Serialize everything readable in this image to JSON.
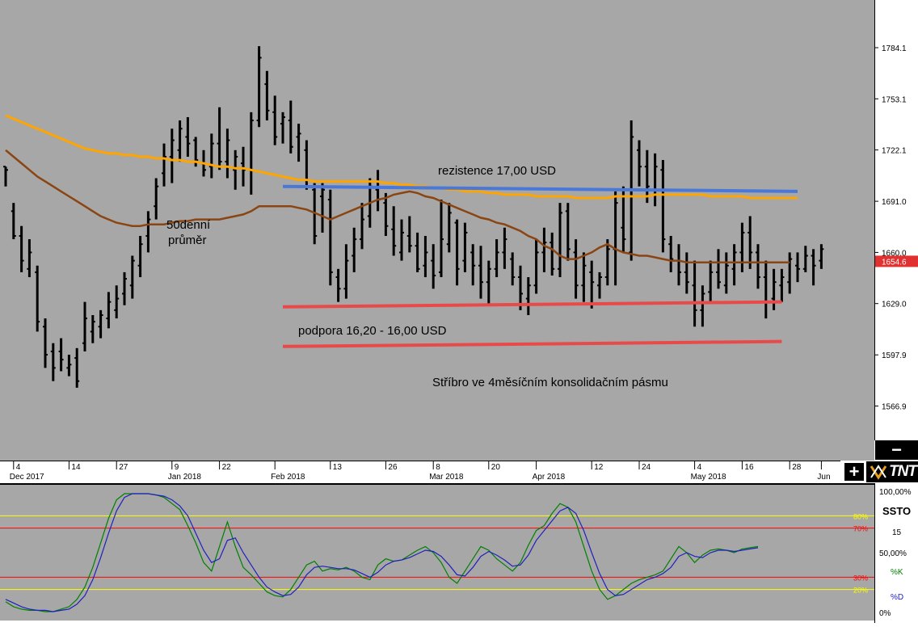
{
  "chart_data": [
    {
      "type": "ohlc",
      "ylim": [
        1545,
        1815
      ],
      "y_ticks": [
        "1784.1",
        "1753.1",
        "1722.1",
        "1691.0",
        "1660.0",
        "1629.0",
        "1597.9",
        "1566.9"
      ],
      "last_price_label": "1654.6",
      "x_ticks": [
        {
          "i": 1,
          "label": "4",
          "sub": "Dec 2017"
        },
        {
          "i": 8,
          "label": "14",
          "sub": ""
        },
        {
          "i": 14,
          "label": "27",
          "sub": ""
        },
        {
          "i": 21,
          "label": "9",
          "sub": "Jan 2018"
        },
        {
          "i": 27,
          "label": "22",
          "sub": ""
        },
        {
          "i": 34,
          "label": "",
          "sub": "Feb 2018"
        },
        {
          "i": 41,
          "label": "13",
          "sub": ""
        },
        {
          "i": 48,
          "label": "26",
          "sub": ""
        },
        {
          "i": 54,
          "label": "8",
          "sub": "Mar 2018"
        },
        {
          "i": 61,
          "label": "20",
          "sub": ""
        },
        {
          "i": 67,
          "label": "",
          "sub": "Apr 2018"
        },
        {
          "i": 74,
          "label": "12",
          "sub": ""
        },
        {
          "i": 80,
          "label": "24",
          "sub": ""
        },
        {
          "i": 87,
          "label": "4",
          "sub": "May 2018"
        },
        {
          "i": 93,
          "label": "16",
          "sub": ""
        },
        {
          "i": 99,
          "label": "28",
          "sub": ""
        },
        {
          "i": 103,
          "label": "",
          "sub": "Jun"
        }
      ],
      "bars": [
        [
          1712,
          1700,
          1712,
          1710
        ],
        [
          1690,
          1668,
          1685,
          1670
        ],
        [
          1676,
          1648,
          1670,
          1655
        ],
        [
          1668,
          1645,
          1650,
          1660
        ],
        [
          1652,
          1612,
          1648,
          1618
        ],
        [
          1620,
          1590,
          1615,
          1598
        ],
        [
          1605,
          1582,
          1600,
          1590
        ],
        [
          1608,
          1588,
          1600,
          1595
        ],
        [
          1598,
          1585,
          1590,
          1592
        ],
        [
          1602,
          1578,
          1596,
          1582
        ],
        [
          1630,
          1600,
          1605,
          1620
        ],
        [
          1622,
          1605,
          1612,
          1618
        ],
        [
          1625,
          1608,
          1615,
          1622
        ],
        [
          1636,
          1614,
          1620,
          1630
        ],
        [
          1640,
          1620,
          1625,
          1632
        ],
        [
          1648,
          1628,
          1635,
          1644
        ],
        [
          1658,
          1632,
          1640,
          1655
        ],
        [
          1670,
          1645,
          1652,
          1665
        ],
        [
          1685,
          1660,
          1670,
          1680
        ],
        [
          1705,
          1680,
          1688,
          1700
        ],
        [
          1726,
          1700,
          1708,
          1718
        ],
        [
          1735,
          1702,
          1718,
          1728
        ],
        [
          1740,
          1715,
          1722,
          1735
        ],
        [
          1742,
          1718,
          1730,
          1726
        ],
        [
          1730,
          1712,
          1728,
          1716
        ],
        [
          1722,
          1706,
          1714,
          1710
        ],
        [
          1732,
          1705,
          1712,
          1726
        ],
        [
          1748,
          1710,
          1726,
          1715
        ],
        [
          1735,
          1705,
          1715,
          1728
        ],
        [
          1722,
          1698,
          1710,
          1718
        ],
        [
          1724,
          1700,
          1714,
          1710
        ],
        [
          1745,
          1695,
          1710,
          1740
        ],
        [
          1785,
          1736,
          1740,
          1778
        ],
        [
          1770,
          1740,
          1762,
          1746
        ],
        [
          1755,
          1725,
          1745,
          1730
        ],
        [
          1745,
          1726,
          1738,
          1742
        ],
        [
          1752,
          1720,
          1740,
          1724
        ],
        [
          1738,
          1715,
          1730,
          1732
        ],
        [
          1728,
          1698,
          1722,
          1700
        ],
        [
          1702,
          1665,
          1698,
          1670
        ],
        [
          1702,
          1672,
          1694,
          1698
        ],
        [
          1698,
          1640,
          1692,
          1648
        ],
        [
          1650,
          1630,
          1645,
          1638
        ],
        [
          1665,
          1632,
          1638,
          1655
        ],
        [
          1675,
          1648,
          1658,
          1668
        ],
        [
          1690,
          1662,
          1668,
          1680
        ],
        [
          1705,
          1675,
          1682,
          1700
        ],
        [
          1710,
          1685,
          1698,
          1692
        ],
        [
          1696,
          1670,
          1690,
          1676
        ],
        [
          1688,
          1658,
          1674,
          1664
        ],
        [
          1680,
          1655,
          1660,
          1672
        ],
        [
          1682,
          1660,
          1670,
          1664
        ],
        [
          1672,
          1648,
          1664,
          1650
        ],
        [
          1670,
          1645,
          1652,
          1660
        ],
        [
          1665,
          1638,
          1655,
          1646
        ],
        [
          1692,
          1645,
          1648,
          1668
        ],
        [
          1690,
          1660,
          1665,
          1684
        ],
        [
          1680,
          1640,
          1678,
          1650
        ],
        [
          1678,
          1648,
          1655,
          1672
        ],
        [
          1665,
          1640,
          1660,
          1652
        ],
        [
          1664,
          1632,
          1652,
          1642
        ],
        [
          1655,
          1628,
          1642,
          1650
        ],
        [
          1668,
          1645,
          1650,
          1660
        ],
        [
          1675,
          1650,
          1660,
          1668
        ],
        [
          1660,
          1640,
          1656,
          1645
        ],
        [
          1652,
          1625,
          1645,
          1635
        ],
        [
          1645,
          1622,
          1632,
          1640
        ],
        [
          1668,
          1635,
          1640,
          1660
        ],
        [
          1675,
          1648,
          1660,
          1666
        ],
        [
          1672,
          1646,
          1666,
          1650
        ],
        [
          1690,
          1645,
          1650,
          1684
        ],
        [
          1690,
          1655,
          1685,
          1662
        ],
        [
          1668,
          1632,
          1660,
          1640
        ],
        [
          1660,
          1630,
          1640,
          1652
        ],
        [
          1655,
          1626,
          1648,
          1642
        ],
        [
          1648,
          1632,
          1640,
          1645
        ],
        [
          1668,
          1640,
          1645,
          1662
        ],
        [
          1697,
          1640,
          1662,
          1690
        ],
        [
          1700,
          1660,
          1675,
          1668
        ],
        [
          1740,
          1655,
          1660,
          1730
        ],
        [
          1728,
          1700,
          1722,
          1712
        ],
        [
          1722,
          1690,
          1712,
          1700
        ],
        [
          1720,
          1688,
          1695,
          1712
        ],
        [
          1716,
          1660,
          1710,
          1668
        ],
        [
          1670,
          1648,
          1665,
          1656
        ],
        [
          1665,
          1640,
          1655,
          1648
        ],
        [
          1660,
          1635,
          1648,
          1642
        ],
        [
          1655,
          1615,
          1640,
          1625
        ],
        [
          1640,
          1615,
          1625,
          1635
        ],
        [
          1655,
          1630,
          1636,
          1648
        ],
        [
          1662,
          1638,
          1648,
          1642
        ],
        [
          1660,
          1635,
          1640,
          1652
        ],
        [
          1665,
          1640,
          1650,
          1660
        ],
        [
          1678,
          1648,
          1660,
          1672
        ],
        [
          1682,
          1650,
          1672,
          1660
        ],
        [
          1665,
          1638,
          1660,
          1645
        ],
        [
          1655,
          1620,
          1645,
          1630
        ],
        [
          1650,
          1625,
          1632,
          1642
        ],
        [
          1650,
          1630,
          1640,
          1645
        ],
        [
          1660,
          1635,
          1642,
          1656
        ],
        [
          1660,
          1642,
          1652,
          1650
        ],
        [
          1664,
          1648,
          1650,
          1658
        ],
        [
          1662,
          1640,
          1658,
          1652
        ],
        [
          1665,
          1650,
          1655,
          1662
        ]
      ],
      "ma50": [
        1722,
        1718,
        1714,
        1710,
        1706,
        1703,
        1700,
        1697,
        1694,
        1691,
        1688,
        1685,
        1682,
        1680,
        1678,
        1677,
        1676,
        1676,
        1677,
        1677,
        1677,
        1678,
        1679,
        1679,
        1680,
        1680,
        1680,
        1680,
        1681,
        1682,
        1683,
        1685,
        1688,
        1688,
        1688,
        1688,
        1688,
        1687,
        1686,
        1684,
        1682,
        1680,
        1682,
        1684,
        1686,
        1688,
        1690,
        1692,
        1693,
        1695,
        1696,
        1697,
        1696,
        1694,
        1693,
        1691,
        1689,
        1687,
        1685,
        1683,
        1681,
        1680,
        1678,
        1677,
        1675,
        1673,
        1670,
        1668,
        1664,
        1662,
        1658,
        1656,
        1656,
        1658,
        1660,
        1663,
        1665,
        1662,
        1660,
        1659,
        1658,
        1658,
        1657,
        1656,
        1655,
        1655,
        1654,
        1654,
        1654,
        1654,
        1654,
        1654,
        1654,
        1654,
        1654,
        1654,
        1654,
        1654,
        1654,
        1654
      ],
      "ma_long": [
        1743,
        1741,
        1739,
        1737,
        1735,
        1733,
        1731,
        1729,
        1727,
        1725,
        1723,
        1722,
        1721,
        1720,
        1720,
        1719,
        1719,
        1718,
        1718,
        1717,
        1717,
        1716,
        1716,
        1715,
        1715,
        1714,
        1713,
        1712,
        1712,
        1711,
        1711,
        1710,
        1709,
        1708,
        1707,
        1706,
        1705,
        1704,
        1704,
        1703,
        1703,
        1703,
        1703,
        1703,
        1703,
        1703,
        1703,
        1703,
        1702,
        1702,
        1701,
        1701,
        1700,
        1700,
        1699,
        1699,
        1698,
        1698,
        1697,
        1697,
        1697,
        1696,
        1696,
        1695,
        1695,
        1695,
        1695,
        1694,
        1694,
        1694,
        1694,
        1694,
        1693,
        1693,
        1693,
        1693,
        1693,
        1694,
        1694,
        1694,
        1694,
        1694,
        1695,
        1695,
        1695,
        1695,
        1695,
        1695,
        1695,
        1694,
        1694,
        1694,
        1694,
        1694,
        1693,
        1693,
        1693,
        1693,
        1693,
        1693,
        1693
      ],
      "annotations": {
        "resistance": "rezistence 17,00 USD",
        "ma_label_line1": "50denní",
        "ma_label_line2": "průměr",
        "support": "podpora 16,20 - 16,00 USD",
        "caption": "Stříbro ve 4měsíčním konsolidačním pásmu"
      },
      "lines": {
        "resistance": [
          [
            35,
            1700
          ],
          [
            100,
            1697
          ]
        ],
        "support_upper": [
          [
            35,
            1627
          ],
          [
            98,
            1630
          ]
        ],
        "support_lower": [
          [
            35,
            1603
          ],
          [
            98,
            1606
          ]
        ]
      },
      "colors": {
        "background": "#a7a7a7",
        "bars": "#000000",
        "ma50": "#8b4513",
        "ma_long": "#ffa500",
        "resistance": "#4a78d8",
        "support": "#e84a4a"
      }
    },
    {
      "type": "line",
      "name": "SSTO",
      "ylim": [
        0,
        100
      ],
      "period_label": "15",
      "y_ticks": [
        "100,00%",
        "50,00%",
        "0%"
      ],
      "levels": [
        {
          "value": 80,
          "label": "80%",
          "color": "#ffff00"
        },
        {
          "value": 70,
          "label": "70%",
          "color": "#ff0000"
        },
        {
          "value": 30,
          "label": "30%",
          "color": "#ff0000"
        },
        {
          "value": 20,
          "label": "20%",
          "color": "#ffff00"
        }
      ],
      "series": [
        {
          "name": "%K",
          "color": "#008000",
          "values": [
            10,
            6,
            4,
            3,
            3,
            2,
            2,
            4,
            6,
            12,
            22,
            38,
            58,
            78,
            93,
            98,
            98,
            98,
            98,
            97,
            95,
            90,
            85,
            72,
            58,
            42,
            35,
            55,
            75,
            55,
            38,
            32,
            25,
            18,
            15,
            14,
            20,
            30,
            40,
            43,
            35,
            37,
            36,
            38,
            35,
            30,
            28,
            40,
            45,
            43,
            44,
            48,
            52,
            55,
            50,
            42,
            30,
            25,
            35,
            45,
            55,
            52,
            45,
            40,
            35,
            42,
            56,
            68,
            72,
            82,
            90,
            87,
            75,
            55,
            35,
            20,
            12,
            15,
            20,
            25,
            28,
            30,
            32,
            35,
            45,
            55,
            50,
            42,
            48,
            52,
            53,
            52,
            50,
            53,
            54,
            55
          ]
        },
        {
          "name": "%D",
          "color": "#2020c0",
          "values": [
            12,
            9,
            6,
            4,
            3,
            3,
            2,
            3,
            4,
            8,
            15,
            28,
            46,
            66,
            84,
            95,
            98,
            98,
            98,
            97,
            96,
            93,
            88,
            80,
            66,
            52,
            42,
            45,
            60,
            62,
            50,
            40,
            30,
            22,
            18,
            15,
            16,
            22,
            32,
            38,
            39,
            38,
            37,
            37,
            36,
            33,
            30,
            34,
            40,
            43,
            44,
            46,
            49,
            52,
            51,
            47,
            40,
            32,
            31,
            38,
            47,
            51,
            48,
            44,
            39,
            40,
            48,
            60,
            68,
            76,
            84,
            87,
            82,
            68,
            50,
            33,
            20,
            15,
            16,
            20,
            24,
            28,
            30,
            33,
            38,
            47,
            50,
            47,
            46,
            50,
            52,
            52,
            51,
            52,
            53,
            54
          ]
        }
      ]
    }
  ]
}
